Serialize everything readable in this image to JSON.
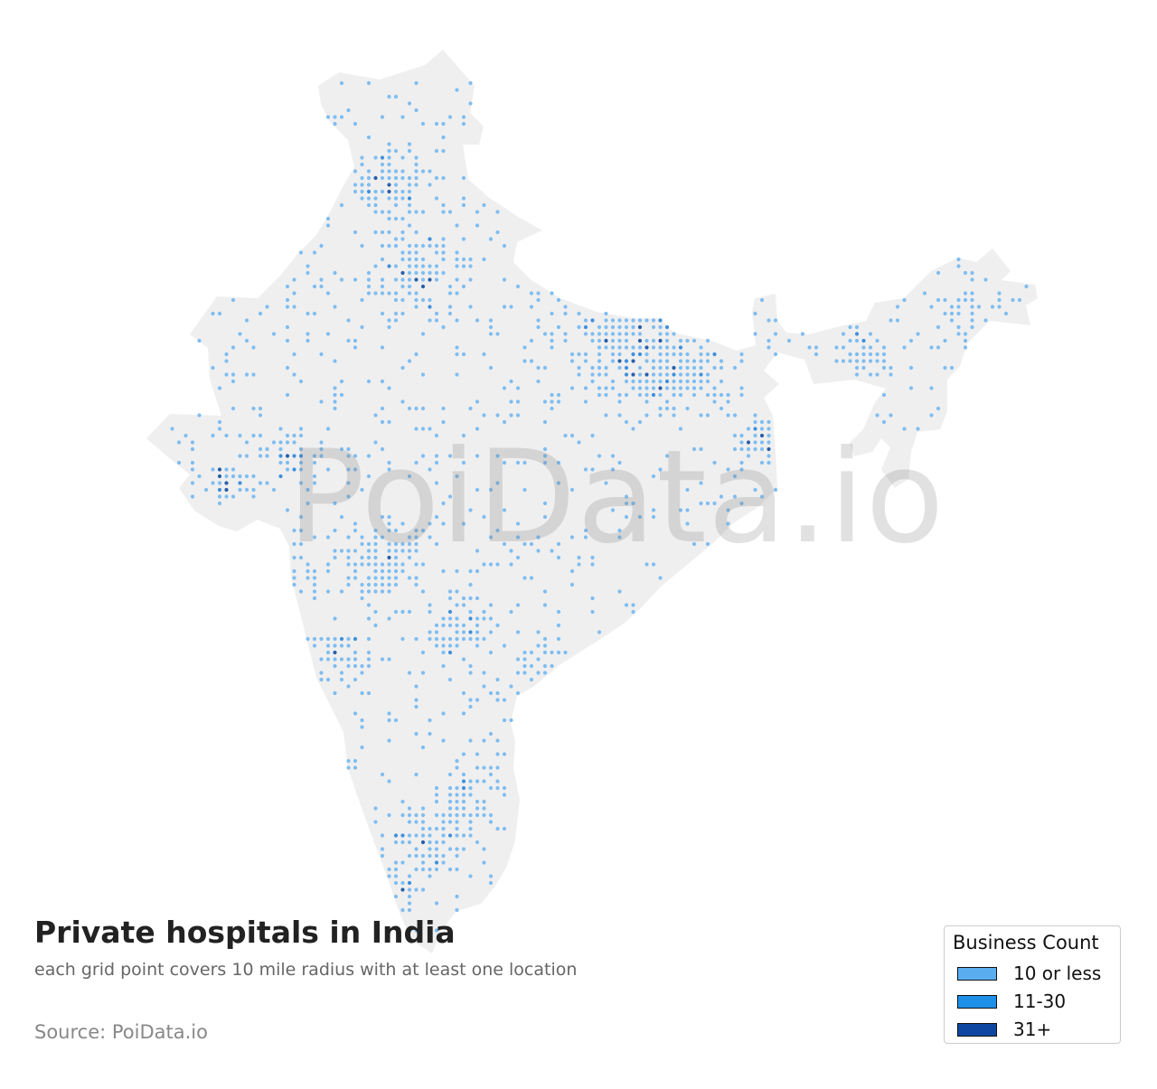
{
  "title": "Private hospitals in India",
  "subtitle": "each grid point covers 10 mile radius with at least one location",
  "source": "Source: PoiData.io",
  "watermark": "PoiData.io",
  "legend": {
    "title": "Business Count",
    "items": [
      {
        "label": "10 or less",
        "color": "#5aaef0"
      },
      {
        "label": "11-30",
        "color": "#1e90e8"
      },
      {
        "label": "31+",
        "color": "#0d47a1"
      }
    ]
  },
  "colors": {
    "land": "#efefef",
    "dot_low": "#7fbdf0",
    "dot_mid": "#3f8fdc",
    "dot_high": "#2a5fa8"
  }
}
